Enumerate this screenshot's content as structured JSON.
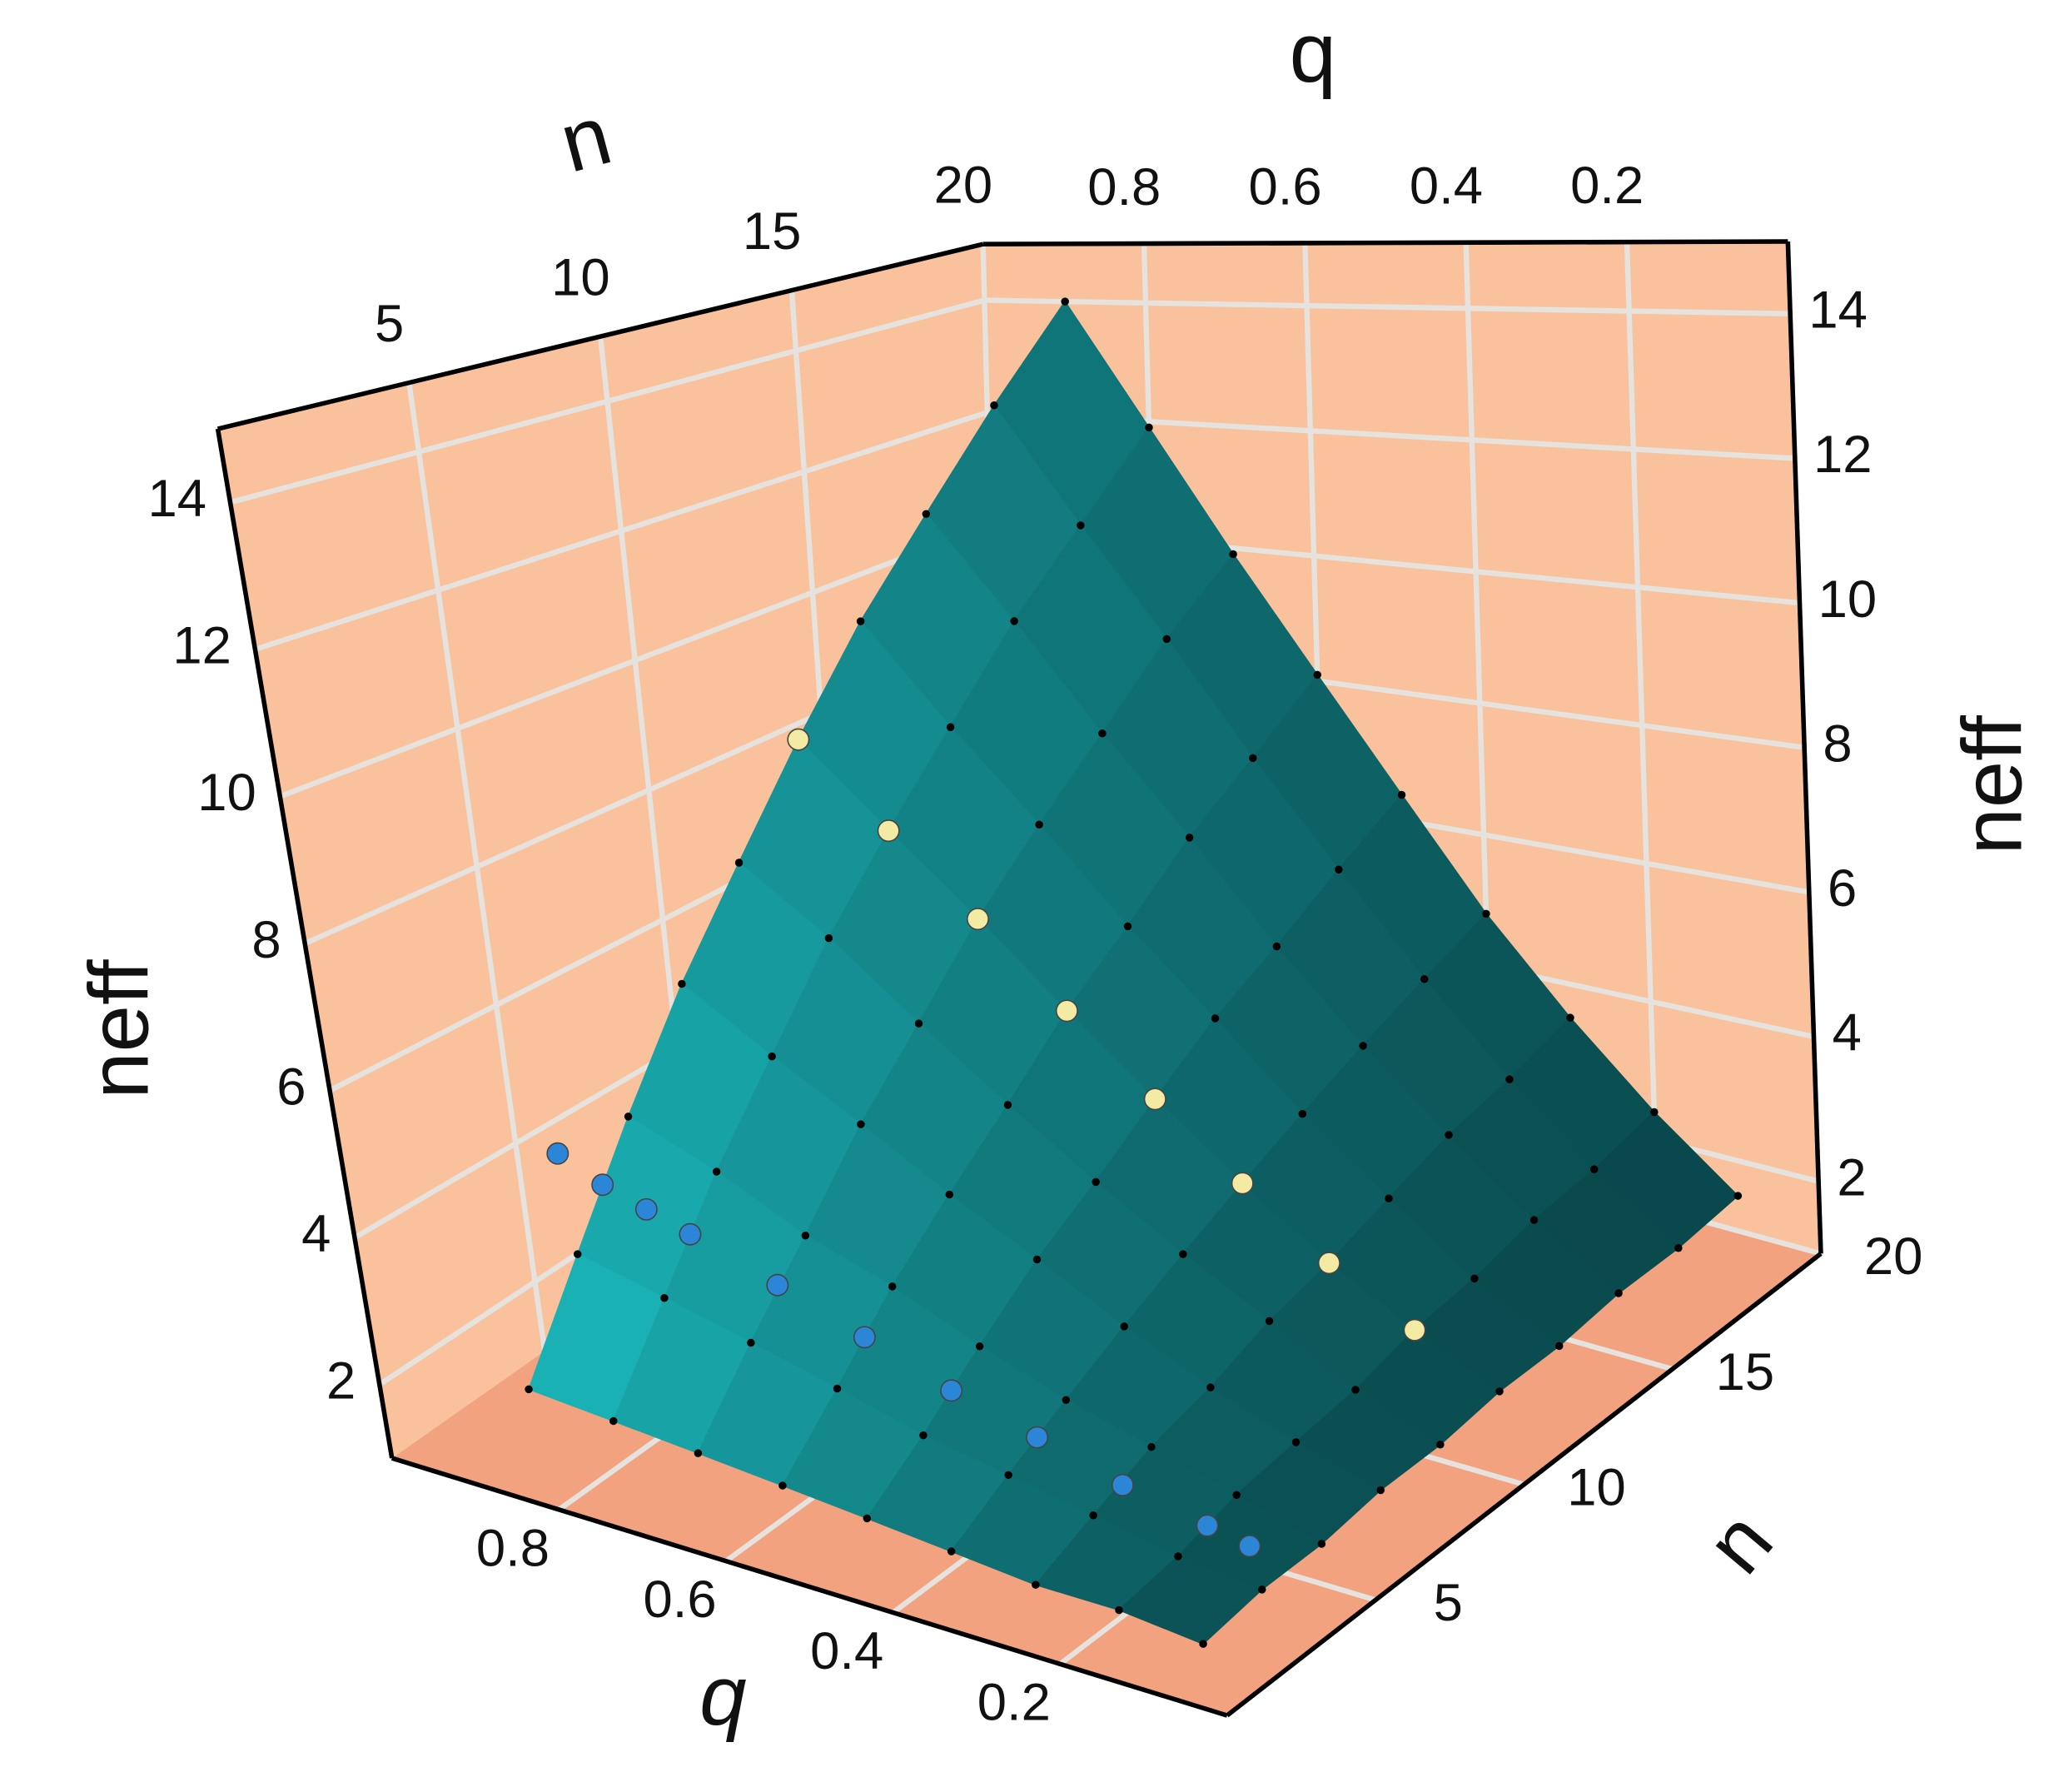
{
  "chart_data": {
    "type": "surface3d",
    "xlabel": "n",
    "ylabel": "q",
    "zlabel": "neff",
    "n": [
      2,
      4,
      6,
      8,
      10,
      12,
      14,
      16,
      18,
      20
    ],
    "q": [
      0.1,
      0.2,
      0.3,
      0.4,
      0.5,
      0.6,
      0.7,
      0.8,
      0.9
    ],
    "z": [
      [
        1.0,
        1.1,
        1.1,
        1.2,
        1.3,
        1.4,
        1.5,
        1.6,
        1.7
      ],
      [
        1.1,
        1.2,
        1.4,
        1.6,
        1.8,
        2.1,
        2.4,
        2.7,
        3.0
      ],
      [
        1.1,
        1.4,
        1.7,
        2.0,
        2.4,
        2.9,
        3.3,
        3.9,
        4.4
      ],
      [
        1.2,
        1.5,
        1.9,
        2.4,
        3.0,
        3.6,
        4.3,
        5.0,
        5.8
      ],
      [
        1.2,
        1.6,
        2.2,
        2.8,
        3.5,
        4.3,
        5.2,
        6.2,
        7.1
      ],
      [
        1.3,
        1.8,
        2.4,
        3.2,
        4.1,
        5.1,
        6.2,
        7.3,
        8.5
      ],
      [
        1.3,
        1.9,
        2.7,
        3.6,
        4.7,
        5.8,
        7.1,
        8.4,
        9.9
      ],
      [
        1.4,
        2.1,
        3.0,
        4.0,
        5.2,
        6.6,
        8.0,
        9.6,
        11.2
      ],
      [
        1.4,
        2.2,
        3.2,
        4.4,
        5.8,
        7.3,
        9.0,
        10.7,
        12.6
      ],
      [
        1.5,
        2.4,
        3.5,
        4.8,
        6.4,
        8.1,
        9.9,
        11.9,
        14.0
      ]
    ],
    "nlim": [
      0,
      20
    ],
    "qlim": [
      0,
      1
    ],
    "zlim": [
      1,
      15
    ],
    "nticks": [
      5,
      10,
      15,
      20
    ],
    "qticks": [
      0.8,
      0.6,
      0.4,
      0.2
    ],
    "zticks": [
      2,
      4,
      6,
      8,
      10,
      12,
      14
    ],
    "grid": true,
    "surface_colors": [
      "#083f42",
      "#1fd2d6"
    ],
    "wall_color": "#f9c29d",
    "floor_color": "#f2a27f",
    "points": [
      {
        "color": "#f3eba4",
        "n": [
          12,
          12,
          12,
          12,
          12,
          12,
          12,
          12
        ],
        "q": [
          0.9,
          0.8,
          0.7,
          0.6,
          0.5,
          0.4,
          0.3,
          0.2
        ],
        "neff": [
          8.5,
          7.3,
          6.2,
          5.1,
          4.1,
          3.2,
          2.4,
          1.8
        ]
      },
      {
        "color": "#2b86d8",
        "n": [
          5,
          5,
          5,
          5,
          5,
          5,
          5,
          5,
          5,
          5,
          5
        ],
        "q": [
          0.95,
          0.9,
          0.85,
          0.8,
          0.7,
          0.6,
          0.5,
          0.4,
          0.3,
          0.2,
          0.15
        ],
        "neff": [
          4.0,
          3.7,
          3.5,
          3.3,
          2.9,
          2.5,
          2.1,
          1.8,
          1.5,
          1.3,
          1.2
        ]
      }
    ]
  }
}
